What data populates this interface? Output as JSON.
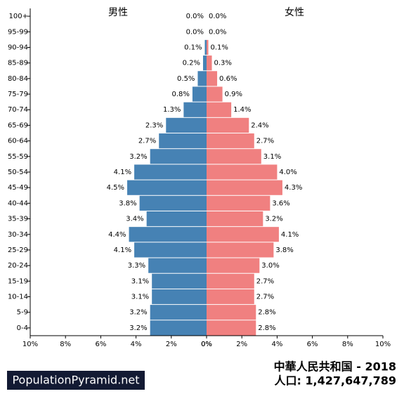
{
  "chart_data": {
    "type": "pyramid",
    "title": "中華人民共和国 - 2018",
    "subtitle": "人口: 1,427,647,789",
    "source": "PopulationPyramid.net",
    "categories": [
      "100+",
      "95-99",
      "90-94",
      "85-89",
      "80-84",
      "75-79",
      "70-74",
      "65-69",
      "60-64",
      "55-59",
      "50-54",
      "45-49",
      "40-44",
      "35-39",
      "30-34",
      "25-29",
      "20-24",
      "15-19",
      "10-14",
      "5-9",
      "0-4"
    ],
    "series": [
      {
        "name": "男性",
        "color": "#4682b4",
        "values": [
          0.0,
          0.0,
          0.1,
          0.2,
          0.5,
          0.8,
          1.3,
          2.3,
          2.7,
          3.2,
          4.1,
          4.5,
          3.8,
          3.4,
          4.4,
          4.1,
          3.3,
          3.1,
          3.1,
          3.2,
          3.2
        ],
        "value_labels": [
          "0.0%",
          "0.0%",
          "0.1%",
          "0.2%",
          "0.5%",
          "0.8%",
          "1.3%",
          "2.3%",
          "2.7%",
          "3.2%",
          "4.1%",
          "4.5%",
          "3.8%",
          "3.4%",
          "4.4%",
          "4.1%",
          "3.3%",
          "3.1%",
          "3.1%",
          "3.2%",
          "3.2%"
        ]
      },
      {
        "name": "女性",
        "color": "#f08080",
        "values": [
          0.0,
          0.0,
          0.1,
          0.3,
          0.6,
          0.9,
          1.4,
          2.4,
          2.7,
          3.1,
          4.0,
          4.3,
          3.6,
          3.2,
          4.1,
          3.8,
          3.0,
          2.7,
          2.7,
          2.8,
          2.8
        ],
        "value_labels": [
          "0.0%",
          "0.0%",
          "0.1%",
          "0.3%",
          "0.6%",
          "0.9%",
          "1.4%",
          "2.4%",
          "2.7%",
          "3.1%",
          "4.0%",
          "4.3%",
          "3.6%",
          "3.2%",
          "4.1%",
          "3.8%",
          "3.0%",
          "2.7%",
          "2.7%",
          "2.8%",
          "2.8%"
        ]
      }
    ],
    "xlim": [
      0,
      10
    ],
    "xticks": [
      {
        "value": 0,
        "label": "0%"
      },
      {
        "value": 2,
        "label": "2%"
      },
      {
        "value": 4,
        "label": "4%"
      },
      {
        "value": 6,
        "label": "6%"
      },
      {
        "value": 8,
        "label": "8%"
      },
      {
        "value": 10,
        "label": "10%"
      }
    ]
  }
}
